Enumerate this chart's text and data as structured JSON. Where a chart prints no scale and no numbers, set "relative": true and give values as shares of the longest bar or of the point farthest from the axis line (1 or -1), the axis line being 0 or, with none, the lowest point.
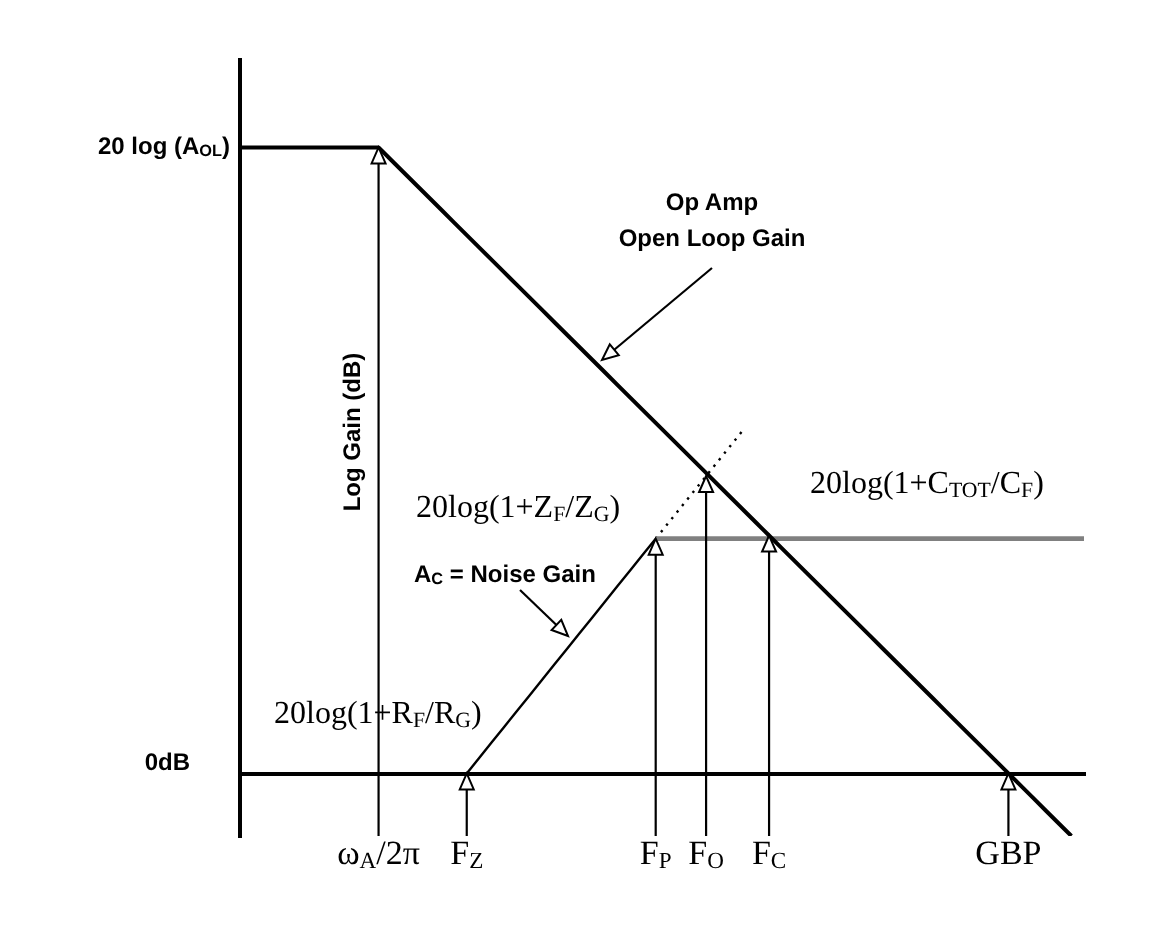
{
  "chart_data": {
    "type": "line",
    "relative": true,
    "ylabel": "Log Gain (dB)",
    "categories": [
      null,
      null,
      null,
      null,
      null,
      null,
      null,
      null,
      null,
      null,
      null,
      "ω$_{A}$/2π",
      null,
      null,
      null,
      null,
      null,
      null,
      "F$_{Z}$",
      null,
      null,
      null,
      null,
      null,
      null,
      null,
      null,
      null,
      null,
      null,
      null,
      null,
      null,
      "F$_{P}$",
      null,
      null,
      null,
      "F$_{O}$",
      null,
      null,
      null,
      null,
      "F$_{C}$",
      null,
      null,
      null,
      null,
      null,
      null,
      null,
      null,
      null,
      null,
      null,
      null,
      null,
      null,
      null,
      null,
      null,
      null,
      "GBP",
      null,
      null,
      null,
      null,
      null,
      null
    ],
    "series": [
      {
        "color": "#000000",
        "values": [
          1,
          1,
          1,
          1,
          1,
          1,
          1,
          1,
          1,
          1,
          1,
          1,
          0.98,
          0.96,
          0.94,
          0.92,
          0.9,
          0.88,
          0.86,
          0.84,
          0.82,
          0.8,
          0.78,
          0.76,
          0.74,
          0.72,
          0.7,
          0.68,
          0.66,
          0.64,
          0.62,
          0.6,
          0.58,
          0.56,
          0.54,
          0.52,
          0.5,
          0.48,
          0.46,
          0.44,
          0.42,
          0.4,
          0.38,
          0.36,
          0.34,
          0.32,
          0.3,
          0.28,
          0.26,
          0.24,
          0.22,
          0.2,
          0.18,
          0.16,
          0.14,
          0.12,
          0.1,
          0.08,
          0.06,
          0.04,
          0.02,
          0,
          -0.02,
          -0.04,
          -0.06,
          -0.08,
          -0.1,
          null
        ]
      },
      {
        "color": "#000000",
        "values": [
          null,
          null,
          null,
          null,
          null,
          null,
          null,
          null,
          null,
          null,
          null,
          null,
          null,
          null,
          null,
          null,
          null,
          null,
          0,
          0.025,
          0.05,
          0.075,
          0.1,
          0.125,
          0.15,
          0.175,
          0.2,
          0.225,
          0.25,
          0.275,
          0.3,
          0.325,
          0.35,
          0.375,
          null,
          null,
          null,
          null,
          null,
          null,
          null,
          null,
          null,
          null,
          null,
          null,
          null,
          null,
          null,
          null,
          null,
          null,
          null,
          null,
          null,
          null,
          null,
          null,
          null,
          null,
          null,
          null,
          null,
          null,
          null,
          null,
          null,
          null
        ]
      },
      {
        "color": "#808080",
        "values": [
          null,
          null,
          null,
          null,
          null,
          null,
          null,
          null,
          null,
          null,
          null,
          null,
          null,
          null,
          null,
          null,
          null,
          null,
          null,
          null,
          null,
          null,
          null,
          null,
          null,
          null,
          null,
          null,
          null,
          null,
          null,
          null,
          null,
          0.375,
          0.375,
          0.375,
          0.375,
          0.375,
          0.375,
          0.375,
          0.375,
          0.375,
          0.375,
          0.375,
          0.375,
          0.375,
          0.375,
          0.375,
          0.375,
          0.375,
          0.375,
          0.375,
          0.375,
          0.375,
          0.375,
          0.375,
          0.375,
          0.375,
          0.375,
          0.375,
          0.375,
          0.375,
          0.375,
          0.375,
          0.375,
          0.375,
          0.375,
          0.375
        ]
      },
      {
        "color": "#000000",
        "line_style": "dotted",
        "values": [
          null,
          null,
          null,
          null,
          null,
          null,
          null,
          null,
          null,
          null,
          null,
          null,
          null,
          null,
          null,
          null,
          null,
          null,
          null,
          null,
          null,
          null,
          null,
          null,
          null,
          null,
          null,
          null,
          null,
          null,
          null,
          null,
          null,
          0.375,
          0.4,
          0.425,
          0.45,
          0.475,
          0.5,
          0.525,
          0.55,
          null,
          null,
          null,
          null,
          null,
          null,
          null,
          null,
          null,
          null,
          null,
          null,
          null,
          null,
          null,
          null,
          null,
          null,
          null,
          null,
          null,
          null,
          null,
          null,
          null,
          null,
          null
        ]
      }
    ],
    "annotations": [
      "20 log (A$_{OL}$)",
      "Op Amp\nOpen Loop Gain",
      "20log(1+C$_{TOT}$/C$_{F}$)",
      "20log(1+Z$_{F}$/Z$_{G}$)",
      "A$_{C}$ = Noise Gain",
      "20log(1+R$_{F}$/R$_{G}$)",
      "0dB"
    ]
  }
}
